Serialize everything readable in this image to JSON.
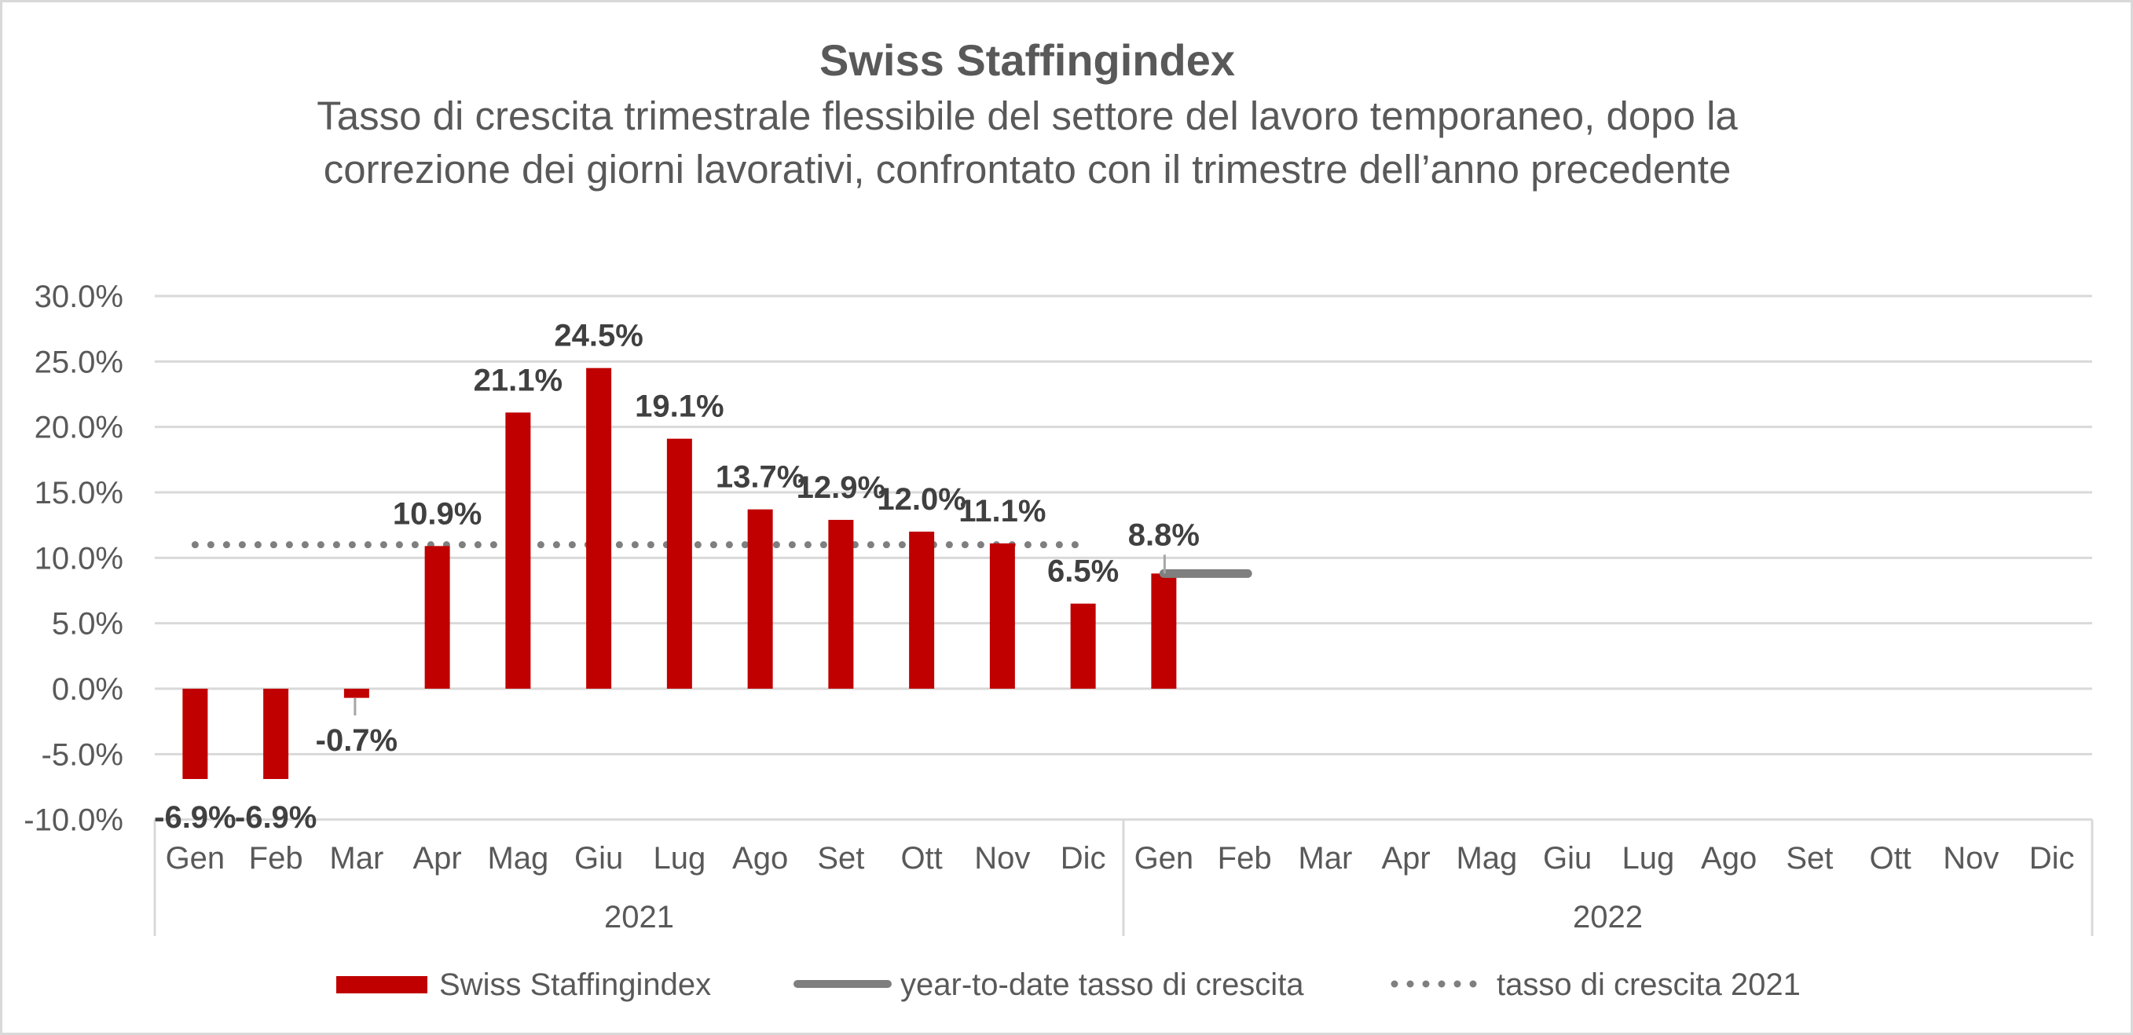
{
  "chart_data": {
    "type": "bar",
    "title": "Swiss Staffingindex",
    "subtitle_lines": [
      "Tasso di crescita trimestrale flessibile del settore del lavoro temporaneo, dopo la",
      "correzione dei giorni lavorativi, confrontato con il trimestre dell’anno precedente"
    ],
    "xlabel": "",
    "ylabel": "",
    "ylim": [
      -10,
      30
    ],
    "y_ticks": [
      30,
      25,
      20,
      15,
      10,
      5,
      0,
      -5,
      -10
    ],
    "y_tick_labels": [
      "30.0%",
      "25.0%",
      "20.0%",
      "15.0%",
      "10.0%",
      "5.0%",
      "0.0%",
      "-5.0%",
      "-10.0%"
    ],
    "grid": true,
    "groups": [
      {
        "label": "2021",
        "categories": [
          "Gen",
          "Feb",
          "Mar",
          "Apr",
          "Mag",
          "Giu",
          "Lug",
          "Ago",
          "Set",
          "Ott",
          "Nov",
          "Dic"
        ]
      },
      {
        "label": "2022",
        "categories": [
          "Gen",
          "Feb",
          "Mar",
          "Apr",
          "Mag",
          "Giu",
          "Lug",
          "Ago",
          "Set",
          "Ott",
          "Nov",
          "Dic"
        ]
      }
    ],
    "series": [
      {
        "name": "Swiss Staffingindex",
        "kind": "bar",
        "color": "#c00000",
        "values": [
          -6.9,
          -6.9,
          -0.7,
          10.9,
          21.1,
          24.5,
          19.1,
          13.7,
          12.9,
          12.0,
          11.1,
          6.5,
          8.8,
          null,
          null,
          null,
          null,
          null,
          null,
          null,
          null,
          null,
          null,
          null
        ],
        "data_labels": [
          "-6.9%",
          "-6.9%",
          "-0.7%",
          "10.9%",
          "21.1%",
          "24.5%",
          "19.1%",
          "13.7%",
          "12.9%",
          "12.0%",
          "11.1%",
          "6.5%",
          "8.8%",
          null,
          null,
          null,
          null,
          null,
          null,
          null,
          null,
          null,
          null,
          null
        ]
      },
      {
        "name": "year-to-date tasso di crescita",
        "kind": "line",
        "color": "#7f7f7f",
        "values": [
          null,
          null,
          null,
          null,
          null,
          null,
          null,
          null,
          null,
          null,
          null,
          null,
          8.8,
          8.8,
          null,
          null,
          null,
          null,
          null,
          null,
          null,
          null,
          null,
          null
        ]
      },
      {
        "name": "tasso di crescita 2021",
        "kind": "dotted-line",
        "color": "#7f7f7f",
        "values": [
          11.0,
          11.0,
          11.0,
          11.0,
          11.0,
          11.0,
          11.0,
          11.0,
          11.0,
          11.0,
          11.0,
          11.0,
          null,
          null,
          null,
          null,
          null,
          null,
          null,
          null,
          null,
          null,
          null,
          null
        ]
      }
    ],
    "legend": {
      "position": "bottom",
      "entries": [
        "Swiss Staffingindex",
        "year-to-date tasso di crescita",
        "tasso di crescita 2021"
      ]
    }
  }
}
